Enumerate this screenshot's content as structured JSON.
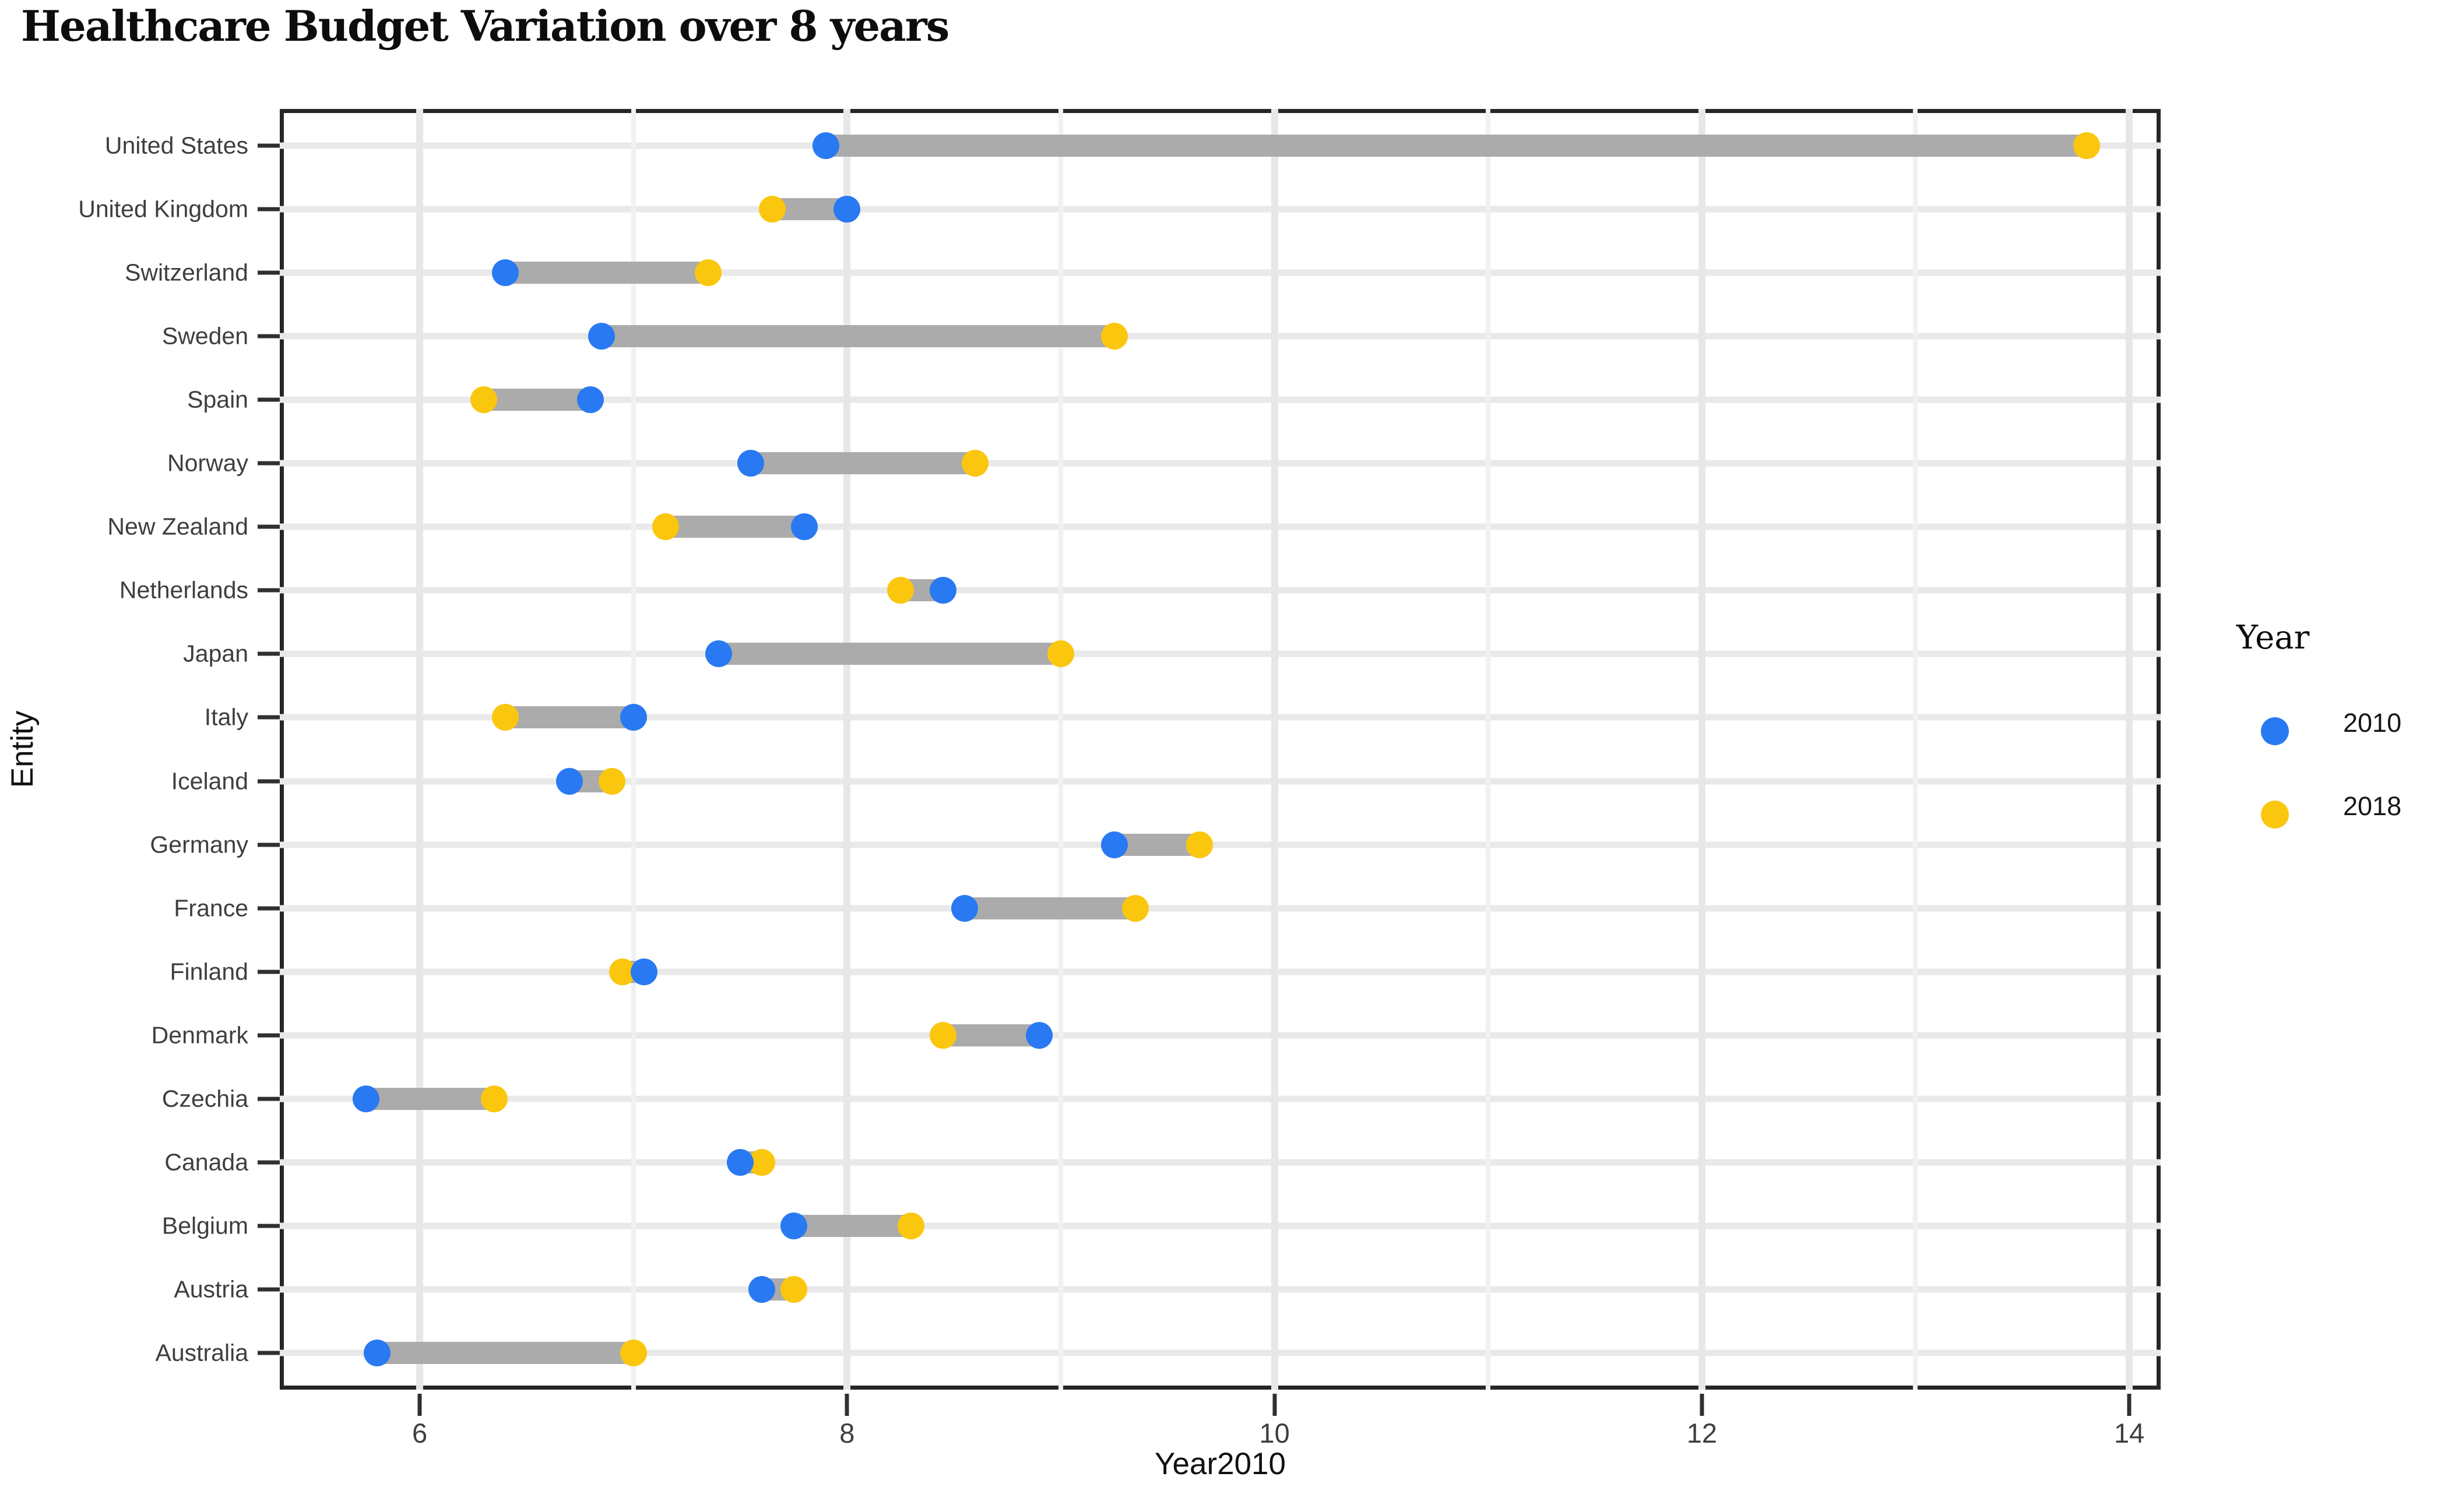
{
  "title": "Healthcare Budget Variation over 8 years",
  "colors": {
    "blue": "#2979F2",
    "yellow": "#FBC60E",
    "segment": "#ABABAB",
    "grid_horizontal": "#E9E9E9",
    "grid_major": "#E7E7E7",
    "grid_minor": "#F1F1F1",
    "panel_border": "#262626",
    "tick": "#303030",
    "axis_text": "#3E3E3E",
    "title_text": "#111111"
  },
  "chart_data": {
    "type": "dumbbell",
    "title": "Healthcare Budget Variation over 8 years",
    "xlabel": "Year2010",
    "ylabel": "Entity",
    "legend": {
      "title": "Year",
      "entries": [
        {
          "label": "2010",
          "color_key": "blue"
        },
        {
          "label": "2018",
          "color_key": "yellow"
        }
      ]
    },
    "xlim": [
      5.345,
      14.147
    ],
    "x_major_ticks": [
      6,
      8,
      10,
      12,
      14
    ],
    "x_major_tick_labels": [
      "6",
      "8",
      "10",
      "12",
      "14"
    ],
    "x_minor_ticks": [
      7,
      9,
      11,
      13
    ],
    "grid": true,
    "legend_position": "right",
    "categories": [
      "United States",
      "United Kingdom",
      "Switzerland",
      "Sweden",
      "Spain",
      "Norway",
      "New Zealand",
      "Netherlands",
      "Japan",
      "Italy",
      "Iceland",
      "Germany",
      "France",
      "Finland",
      "Denmark",
      "Czechia",
      "Canada",
      "Belgium",
      "Austria",
      "Australia"
    ],
    "series": [
      {
        "name": "2010",
        "values": [
          7.9,
          8.0,
          6.4,
          6.85,
          6.8,
          7.55,
          7.8,
          8.45,
          7.4,
          7.0,
          6.7,
          9.25,
          8.55,
          7.05,
          8.9,
          5.75,
          7.5,
          7.75,
          7.6,
          5.8
        ]
      },
      {
        "name": "2018",
        "values": [
          13.8,
          7.65,
          7.35,
          9.25,
          6.3,
          8.6,
          7.15,
          8.25,
          9.0,
          6.4,
          6.9,
          9.65,
          9.35,
          6.95,
          8.45,
          6.35,
          7.6,
          8.3,
          7.75,
          7.0
        ]
      }
    ]
  }
}
